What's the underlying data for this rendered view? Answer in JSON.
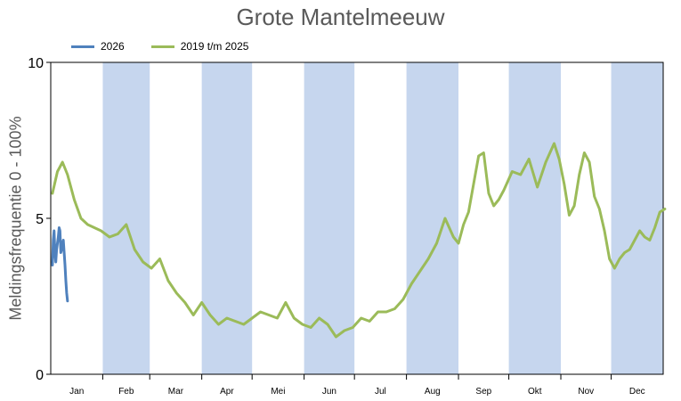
{
  "chart_data": {
    "type": "line",
    "title": "Grote Mantelmeeuw",
    "xlabel": "",
    "ylabel": "Meldingsfrequentie 0 - 100%",
    "ylim": [
      0,
      10
    ],
    "yticks": [
      "0",
      "5",
      "10"
    ],
    "months": [
      "Jan",
      "Feb",
      "Mar",
      "Apr",
      "Mei",
      "Jun",
      "Jul",
      "Aug",
      "Sep",
      "Okt",
      "Nov",
      "Dec"
    ],
    "shaded_months": [
      "Feb",
      "Apr",
      "Jun",
      "Aug",
      "Okt",
      "Dec"
    ],
    "series": [
      {
        "name": "2026",
        "color": "#4f81bd",
        "x": [
          1,
          1.5,
          2,
          2.5,
          3,
          3.5,
          4,
          4.5,
          5,
          5.5,
          6,
          6.5,
          7,
          7.5,
          8,
          8.5,
          9,
          9.5,
          10
        ],
        "y": [
          3.5,
          4.3,
          4.6,
          3.9,
          3.6,
          4.0,
          4.2,
          4.4,
          4.7,
          4.6,
          3.9,
          4.0,
          4.2,
          4.3,
          3.9,
          3.5,
          3.0,
          2.6,
          2.35
        ]
      },
      {
        "name": "2019 t/m 2025",
        "color": "#9bbb59",
        "x": [
          1,
          4,
          7,
          10,
          14,
          18,
          22,
          26,
          30,
          35,
          40,
          45,
          50,
          55,
          60,
          65,
          70,
          75,
          80,
          85,
          90,
          95,
          100,
          105,
          110,
          115,
          120,
          125,
          130,
          135,
          140,
          145,
          150,
          155,
          160,
          165,
          170,
          175,
          180,
          185,
          190,
          195,
          200,
          205,
          210,
          215,
          220,
          225,
          230,
          235,
          240,
          243,
          246,
          249,
          252,
          255,
          258,
          261,
          264,
          267,
          270,
          275,
          280,
          285,
          290,
          295,
          300,
          303,
          306,
          309,
          312,
          315,
          318,
          321,
          324,
          327,
          330,
          333,
          336,
          339,
          342,
          345,
          348,
          351,
          354,
          357,
          360,
          363,
          366
        ],
        "y": [
          5.8,
          6.5,
          6.8,
          6.4,
          5.6,
          5.0,
          4.8,
          4.7,
          4.6,
          4.4,
          4.5,
          4.8,
          4.0,
          3.6,
          3.4,
          3.7,
          3.0,
          2.6,
          2.3,
          1.9,
          2.3,
          1.9,
          1.6,
          1.8,
          1.7,
          1.6,
          1.8,
          2.0,
          1.9,
          1.8,
          2.3,
          1.8,
          1.6,
          1.5,
          1.8,
          1.6,
          1.2,
          1.4,
          1.5,
          1.8,
          1.7,
          2.0,
          2.0,
          2.1,
          2.4,
          2.9,
          3.3,
          3.7,
          4.2,
          5.0,
          4.4,
          4.2,
          4.8,
          5.2,
          6.1,
          7.0,
          7.1,
          5.8,
          5.4,
          5.6,
          5.9,
          6.5,
          6.4,
          6.9,
          6.0,
          6.8,
          7.4,
          6.9,
          6.1,
          5.1,
          5.4,
          6.4,
          7.1,
          6.8,
          5.7,
          5.3,
          4.6,
          3.7,
          3.4,
          3.7,
          3.9,
          4.0,
          4.3,
          4.6,
          4.4,
          4.3,
          4.7,
          5.2,
          5.3
        ]
      }
    ],
    "grid": false,
    "legend_position": "top-left"
  }
}
